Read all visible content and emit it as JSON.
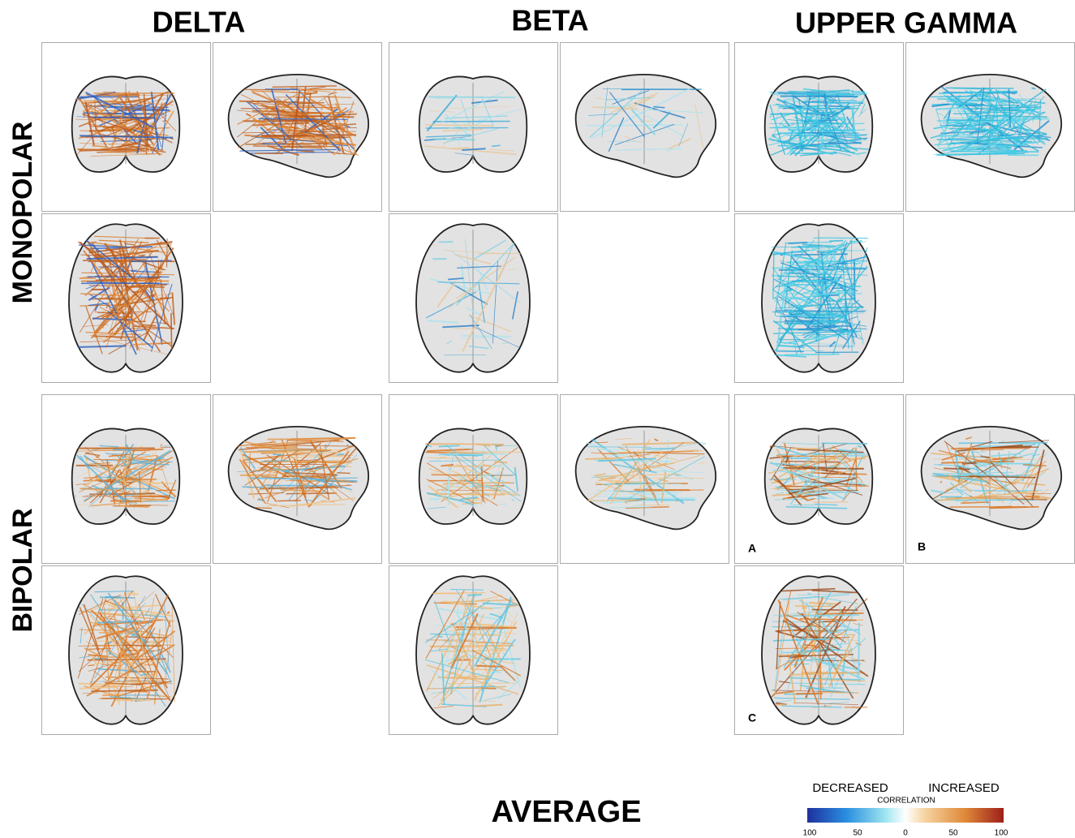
{
  "columns": [
    "DELTA",
    "BETA",
    "UPPER GAMMA"
  ],
  "rows": [
    "MONOPOLAR",
    "BIPOLAR"
  ],
  "panel_letters": [
    "A",
    "B",
    "C"
  ],
  "footer": "AVERAGE",
  "legend": {
    "left": "DECREASED",
    "right": "INCREASED",
    "title": "CORRELATION",
    "ticks": [
      100,
      50,
      0,
      50,
      100
    ]
  }
}
